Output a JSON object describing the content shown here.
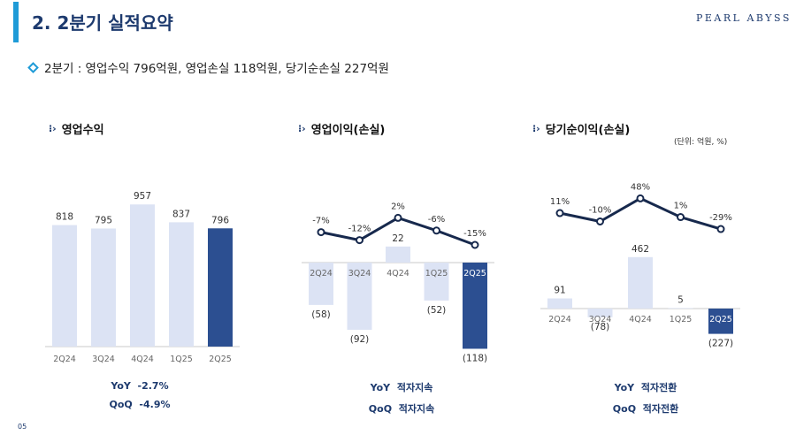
{
  "header": {
    "title": "2. 2분기 실적요약",
    "brand": "PEARL ABYSS"
  },
  "summary": "2분기 : 영업수익 796억원, 영업손실 118억원, 당기순손실 227억원",
  "unit_note": "(단위: 억원, %)",
  "page_number": "05",
  "colors": {
    "light_bar": "#dce3f4",
    "dark_bar": "#2c4f91",
    "line": "#17294d",
    "accent": "#1f9bd7"
  },
  "chart_data": [
    {
      "type": "bar",
      "title": "영업수익",
      "categories": [
        "2Q24",
        "3Q24",
        "4Q24",
        "1Q25",
        "2Q25"
      ],
      "values": [
        818,
        795,
        957,
        837,
        796
      ],
      "value_labels": [
        "818",
        "795",
        "957",
        "837",
        "796"
      ],
      "highlight_index": 4,
      "kpi": [
        {
          "label": "YoY",
          "value": "-2.7%"
        },
        {
          "label": "QoQ",
          "value": "-4.9%"
        }
      ]
    },
    {
      "type": "bar",
      "title": "영업이익(손실)",
      "categories": [
        "2Q24",
        "3Q24",
        "4Q24",
        "1Q25",
        "2Q25"
      ],
      "values": [
        -58,
        -92,
        22,
        -52,
        -118
      ],
      "value_labels": [
        "(58)",
        "(92)",
        "22",
        "(52)",
        "(118)"
      ],
      "highlight_index": 4,
      "margin_line": {
        "values": [
          -7,
          -12,
          2,
          -6,
          -15
        ],
        "labels": [
          "-7%",
          "-12%",
          "2%",
          "-6%",
          "-15%"
        ]
      },
      "kpi": [
        {
          "label": "YoY",
          "value": "적자지속"
        },
        {
          "label": "QoQ",
          "value": "적자지속"
        }
      ]
    },
    {
      "type": "bar",
      "title": "당기순이익(손실)",
      "categories": [
        "2Q24",
        "3Q24",
        "4Q24",
        "1Q25",
        "2Q25"
      ],
      "values": [
        91,
        -78,
        462,
        5,
        -227
      ],
      "value_labels": [
        "91",
        "(78)",
        "462",
        "5",
        "(227)"
      ],
      "highlight_index": 4,
      "margin_line": {
        "values": [
          11,
          -10,
          48,
          1,
          -29
        ],
        "labels": [
          "11%",
          "-10%",
          "48%",
          "1%",
          "-29%"
        ]
      },
      "kpi": [
        {
          "label": "YoY",
          "value": "적자전환"
        },
        {
          "label": "QoQ",
          "value": "적자전환"
        }
      ]
    }
  ]
}
